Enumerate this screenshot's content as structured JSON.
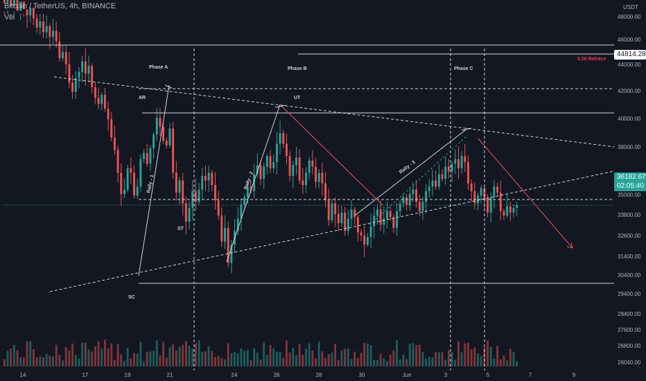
{
  "header": {
    "symbol": "Bitcoin / TetherUS, 4h, BINANCE",
    "volume_label": "Vol"
  },
  "axis": {
    "currency": "USDT",
    "price_ticks": [
      "48000.00",
      "46000.00",
      "44000.00",
      "42000.00",
      "40000.00",
      "38000.00",
      "36800.00",
      "35000.00",
      "33800.00",
      "32600.00",
      "31400.00",
      "30400.00",
      "29400.00",
      "28400.00",
      "27600.00",
      "26800.00",
      "26040.00"
    ],
    "date_ticks": [
      "14",
      "17",
      "19",
      "21",
      "24",
      "26",
      "28",
      "30",
      "Jun",
      "3",
      "5",
      "7",
      "9"
    ]
  },
  "price_tags": {
    "retrace_level": "44814.28",
    "last_price": "36182.67",
    "countdown": "02:05:40"
  },
  "annotations": {
    "retrace_label": "0.50 Retrace",
    "phase_a": "Phase A",
    "phase_b": "Phase B",
    "phase_c": "Phase C",
    "ar": "AR",
    "ut": "UT",
    "st": "ST",
    "sc": "SC",
    "rally_1": "Rally - 1",
    "rally_2": "Rally - 2",
    "rally_3": "Rally - 3"
  },
  "colors": {
    "background": "#131722",
    "up": "#26a69a",
    "down": "#ef5350",
    "text": "#b2b5be",
    "line": "#d1d4dc",
    "retrace_label": "#f23645",
    "last_price_tag": "#26a69a"
  },
  "chart_data": {
    "type": "candlestick",
    "title": "Bitcoin / TetherUS, 4h, BINANCE",
    "ylabel": "USDT",
    "grid": false,
    "series": [
      {
        "name": "BTCUSDT 4h",
        "close": [
          49400,
          49800,
          49200,
          49700,
          48900,
          49500,
          49000,
          48600,
          49100,
          48400,
          47800,
          48200,
          47500,
          47900,
          47200,
          47600,
          46900,
          45800,
          46200,
          45400,
          44200,
          43600,
          44500,
          44900,
          45600,
          44800,
          45300,
          43900,
          43200,
          42800,
          43400,
          42500,
          41800,
          40600,
          39800,
          38300,
          36900,
          37200,
          38600,
          38300,
          36800,
          37400,
          39200,
          39600,
          38900,
          39900,
          40800,
          41900,
          41300,
          40400,
          40100,
          41200,
          38300,
          37000,
          37800,
          36300,
          35100,
          36000,
          37100,
          36400,
          37200,
          38100,
          37800,
          38300,
          37500,
          36500,
          35500,
          33800,
          34700,
          32400,
          33600,
          34500,
          35300,
          36200,
          36700,
          37400,
          37100,
          38200,
          38800,
          37900,
          38700,
          39400,
          38600,
          39000,
          40200,
          40900,
          40200,
          39400,
          38100,
          38800,
          39300,
          37800,
          37500,
          38300,
          39100,
          38700,
          37700,
          38300,
          37600,
          36500,
          35200,
          36300,
          35600,
          35000,
          35700,
          34500,
          35300,
          35900,
          35400,
          34400,
          34200,
          33600,
          34100,
          34800,
          35500,
          35900,
          34900,
          35300,
          35800,
          35400,
          34700,
          35800,
          36300,
          36700,
          36200,
          36900,
          37200,
          36400,
          35800,
          36400,
          37100,
          37400,
          37800,
          37400,
          38200,
          37900,
          38700,
          38400,
          38900,
          39200,
          38600,
          39400,
          39000,
          37600,
          37100,
          36300,
          36800,
          37300,
          36600,
          35700,
          36700,
          37400,
          37000,
          35800,
          35500,
          36100,
          35700,
          36000,
          36182.67
        ]
      }
    ],
    "yrange": [
      25900,
      48700
    ],
    "levels": {
      "retrace_0_5": 44814.28,
      "last": 36182.67
    }
  }
}
